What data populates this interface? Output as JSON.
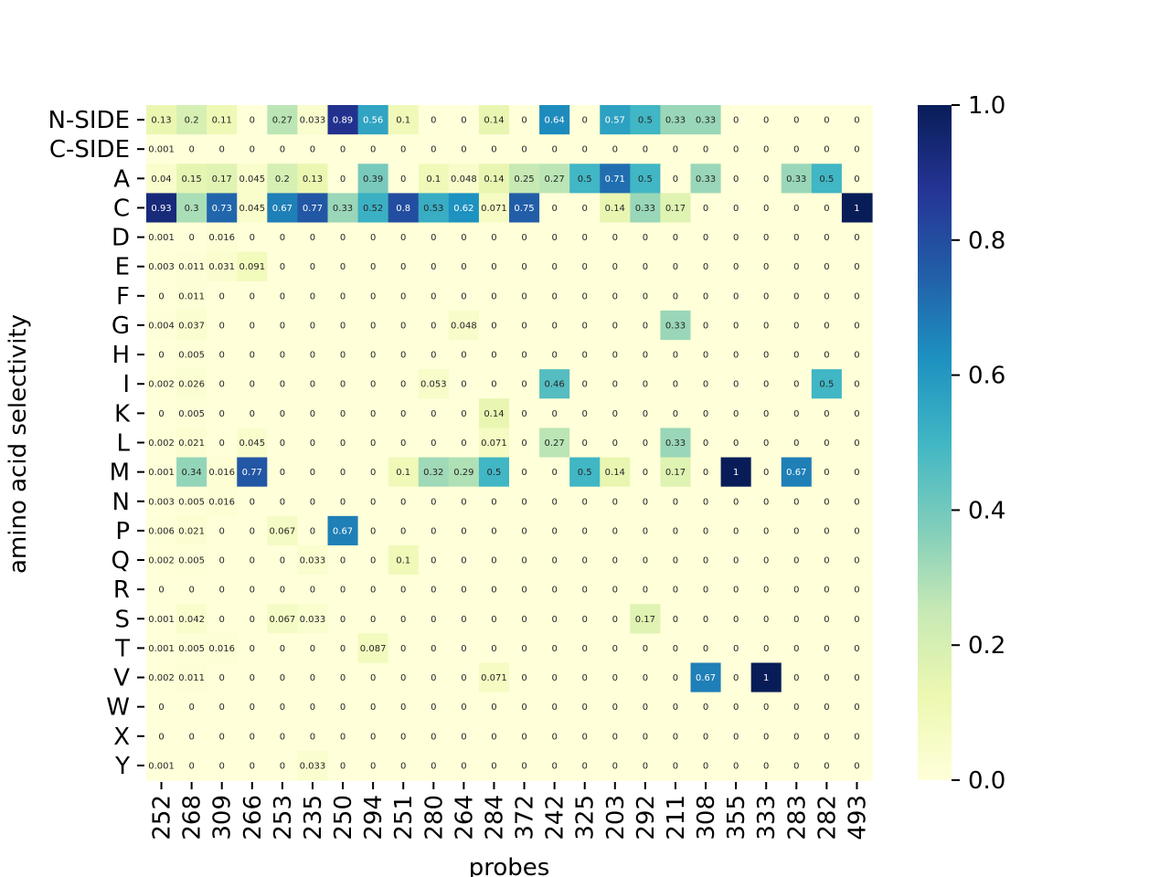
{
  "chart_data": {
    "type": "heatmap",
    "title": "",
    "xlabel": "probes",
    "ylabel": "amino acid selectivity",
    "colormap": "YlGnBu",
    "vmin": 0,
    "vmax": 1,
    "colorbar_ticks": [
      "0.0",
      "0.2",
      "0.4",
      "0.6",
      "0.8",
      "1.0"
    ],
    "x_categories": [
      "252",
      "268",
      "309",
      "266",
      "253",
      "235",
      "250",
      "294",
      "251",
      "280",
      "264",
      "284",
      "372",
      "242",
      "325",
      "203",
      "292",
      "211",
      "308",
      "355",
      "333",
      "283",
      "282",
      "493"
    ],
    "y_categories": [
      "N-SIDE",
      "C-SIDE",
      "A",
      "C",
      "D",
      "E",
      "F",
      "G",
      "H",
      "I",
      "K",
      "L",
      "M",
      "N",
      "P",
      "Q",
      "R",
      "S",
      "T",
      "V",
      "W",
      "X",
      "Y"
    ],
    "values": [
      [
        "0.13",
        "0.2",
        "0.11",
        "0",
        "0.27",
        "0.033",
        "0.89",
        "0.56",
        "0.1",
        "0",
        "0",
        "0.14",
        "0",
        "0.64",
        "0",
        "0.57",
        "0.5",
        "0.33",
        "0.33",
        "0",
        "0",
        "0",
        "0",
        "0"
      ],
      [
        "0.001",
        "0",
        "0",
        "0",
        "0",
        "0",
        "0",
        "0",
        "0",
        "0",
        "0",
        "0",
        "0",
        "0",
        "0",
        "0",
        "0",
        "0",
        "0",
        "0",
        "0",
        "0",
        "0",
        "0"
      ],
      [
        "0.04",
        "0.15",
        "0.17",
        "0.045",
        "0.2",
        "0.13",
        "0",
        "0.39",
        "0",
        "0.1",
        "0.048",
        "0.14",
        "0.25",
        "0.27",
        "0.5",
        "0.71",
        "0.5",
        "0",
        "0.33",
        "0",
        "0",
        "0.33",
        "0.5",
        "0"
      ],
      [
        "0.93",
        "0.3",
        "0.73",
        "0.045",
        "0.67",
        "0.77",
        "0.33",
        "0.52",
        "0.8",
        "0.53",
        "0.62",
        "0.071",
        "0.75",
        "0",
        "0",
        "0.14",
        "0.33",
        "0.17",
        "0",
        "0",
        "0",
        "0",
        "0",
        "1"
      ],
      [
        "0.001",
        "0",
        "0.016",
        "0",
        "0",
        "0",
        "0",
        "0",
        "0",
        "0",
        "0",
        "0",
        "0",
        "0",
        "0",
        "0",
        "0",
        "0",
        "0",
        "0",
        "0",
        "0",
        "0",
        "0"
      ],
      [
        "0.003",
        "0.011",
        "0.031",
        "0.091",
        "0",
        "0",
        "0",
        "0",
        "0",
        "0",
        "0",
        "0",
        "0",
        "0",
        "0",
        "0",
        "0",
        "0",
        "0",
        "0",
        "0",
        "0",
        "0",
        "0"
      ],
      [
        "0",
        "0.011",
        "0",
        "0",
        "0",
        "0",
        "0",
        "0",
        "0",
        "0",
        "0",
        "0",
        "0",
        "0",
        "0",
        "0",
        "0",
        "0",
        "0",
        "0",
        "0",
        "0",
        "0",
        "0"
      ],
      [
        "0.004",
        "0.037",
        "0",
        "0",
        "0",
        "0",
        "0",
        "0",
        "0",
        "0",
        "0.048",
        "0",
        "0",
        "0",
        "0",
        "0",
        "0",
        "0.33",
        "0",
        "0",
        "0",
        "0",
        "0",
        "0"
      ],
      [
        "0",
        "0.005",
        "0",
        "0",
        "0",
        "0",
        "0",
        "0",
        "0",
        "0",
        "0",
        "0",
        "0",
        "0",
        "0",
        "0",
        "0",
        "0",
        "0",
        "0",
        "0",
        "0",
        "0",
        "0"
      ],
      [
        "0.002",
        "0.026",
        "0",
        "0",
        "0",
        "0",
        "0",
        "0",
        "0",
        "0.053",
        "0",
        "0",
        "0",
        "0.46",
        "0",
        "0",
        "0",
        "0",
        "0",
        "0",
        "0",
        "0",
        "0.5",
        "0"
      ],
      [
        "0",
        "0.005",
        "0",
        "0",
        "0",
        "0",
        "0",
        "0",
        "0",
        "0",
        "0",
        "0.14",
        "0",
        "0",
        "0",
        "0",
        "0",
        "0",
        "0",
        "0",
        "0",
        "0",
        "0",
        "0"
      ],
      [
        "0.002",
        "0.021",
        "0",
        "0.045",
        "0",
        "0",
        "0",
        "0",
        "0",
        "0",
        "0",
        "0.071",
        "0",
        "0.27",
        "0",
        "0",
        "0",
        "0.33",
        "0",
        "0",
        "0",
        "0",
        "0",
        "0"
      ],
      [
        "0.001",
        "0.34",
        "0.016",
        "0.77",
        "0",
        "0",
        "0",
        "0",
        "0.1",
        "0.32",
        "0.29",
        "0.5",
        "0",
        "0",
        "0.5",
        "0.14",
        "0",
        "0.17",
        "0",
        "1",
        "0",
        "0.67",
        "0",
        "0"
      ],
      [
        "0.003",
        "0.005",
        "0.016",
        "0",
        "0",
        "0",
        "0",
        "0",
        "0",
        "0",
        "0",
        "0",
        "0",
        "0",
        "0",
        "0",
        "0",
        "0",
        "0",
        "0",
        "0",
        "0",
        "0",
        "0"
      ],
      [
        "0.006",
        "0.021",
        "0",
        "0",
        "0.067",
        "0",
        "0.67",
        "0",
        "0",
        "0",
        "0",
        "0",
        "0",
        "0",
        "0",
        "0",
        "0",
        "0",
        "0",
        "0",
        "0",
        "0",
        "0",
        "0"
      ],
      [
        "0.002",
        "0.005",
        "0",
        "0",
        "0",
        "0.033",
        "0",
        "0",
        "0.1",
        "0",
        "0",
        "0",
        "0",
        "0",
        "0",
        "0",
        "0",
        "0",
        "0",
        "0",
        "0",
        "0",
        "0",
        "0"
      ],
      [
        "0",
        "0",
        "0",
        "0",
        "0",
        "0",
        "0",
        "0",
        "0",
        "0",
        "0",
        "0",
        "0",
        "0",
        "0",
        "0",
        "0",
        "0",
        "0",
        "0",
        "0",
        "0",
        "0",
        "0"
      ],
      [
        "0.001",
        "0.042",
        "0",
        "0",
        "0.067",
        "0.033",
        "0",
        "0",
        "0",
        "0",
        "0",
        "0",
        "0",
        "0",
        "0",
        "0",
        "0.17",
        "0",
        "0",
        "0",
        "0",
        "0",
        "0",
        "0"
      ],
      [
        "0.001",
        "0.005",
        "0.016",
        "0",
        "0",
        "0",
        "0",
        "0.087",
        "0",
        "0",
        "0",
        "0",
        "0",
        "0",
        "0",
        "0",
        "0",
        "0",
        "0",
        "0",
        "0",
        "0",
        "0",
        "0"
      ],
      [
        "0.002",
        "0.011",
        "0",
        "0",
        "0",
        "0",
        "0",
        "0",
        "0",
        "0",
        "0",
        "0.071",
        "0",
        "0",
        "0",
        "0",
        "0",
        "0",
        "0.67",
        "0",
        "1",
        "0",
        "0",
        "0"
      ],
      [
        "0",
        "0",
        "0",
        "0",
        "0",
        "0",
        "0",
        "0",
        "0",
        "0",
        "0",
        "0",
        "0",
        "0",
        "0",
        "0",
        "0",
        "0",
        "0",
        "0",
        "0",
        "0",
        "0",
        "0"
      ],
      [
        "0",
        "0",
        "0",
        "0",
        "0",
        "0",
        "0",
        "0",
        "0",
        "0",
        "0",
        "0",
        "0",
        "0",
        "0",
        "0",
        "0",
        "0",
        "0",
        "0",
        "0",
        "0",
        "0",
        "0"
      ],
      [
        "0.001",
        "0",
        "0",
        "0",
        "0",
        "0.033",
        "0",
        "0",
        "0",
        "0",
        "0",
        "0",
        "0",
        "0",
        "0",
        "0",
        "0",
        "0",
        "0",
        "0",
        "0",
        "0",
        "0",
        "0"
      ]
    ],
    "grid": false,
    "colorbar_position": "right"
  }
}
